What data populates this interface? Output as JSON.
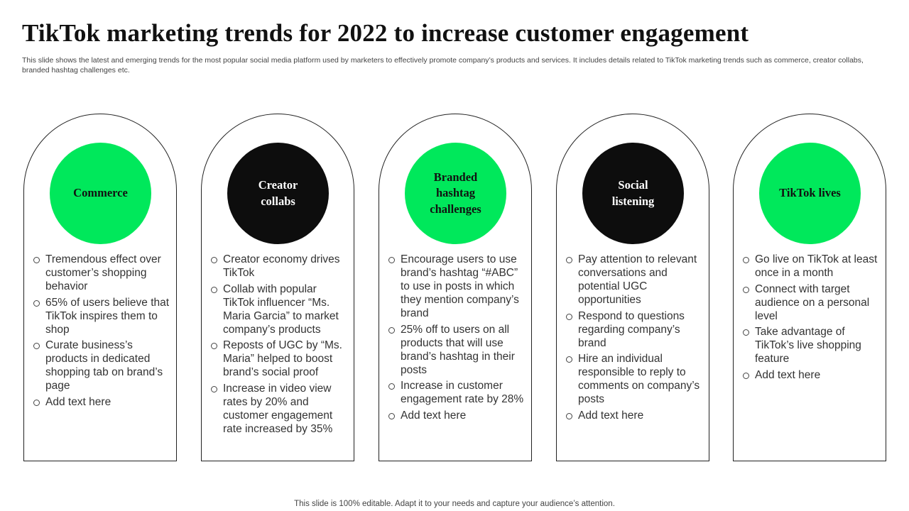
{
  "title": "TikTok marketing trends for 2022 to increase customer engagement",
  "subtitle": "This slide shows the latest and emerging trends for the most popular social media platform used by marketers to effectively promote company’s products and services. It includes details related to TikTok marketing trends such as commerce, creator collabs, branded hashtag challenges etc.",
  "cards": [
    {
      "heading": "Commerce",
      "circle_color": "#00e85b",
      "items": [
        "Tremendous effect over customer’s shopping behavior",
        "65% of users believe that TikTok inspires them to shop",
        "Curate business’s products in dedicated shopping tab on brand’s page",
        "Add text here"
      ]
    },
    {
      "heading": "Creator\ncollabs",
      "circle_color": "#0d0d0d",
      "items": [
        "Creator economy drives TikTok",
        "Collab with popular TikTok influencer  “Ms. Maria Garcia” to market company’s products",
        "Reposts of UGC by “Ms. Maria” helped to boost brand’s social proof",
        "Increase in video view rates by 20% and customer engagement rate increased by 35%"
      ]
    },
    {
      "heading": "Branded\nhashtag\nchallenges",
      "circle_color": "#00e85b",
      "items": [
        "Encourage users to use brand’s hashtag  “#ABC” to use in posts in which they mention company’s brand",
        "25% off to users on all products that will use brand’s hashtag in their posts",
        "Increase  in customer engagement rate by 28%",
        "Add text here"
      ]
    },
    {
      "heading": "Social\nlistening",
      "circle_color": "#0d0d0d",
      "items": [
        "Pay attention to relevant conversations and potential UGC opportunities",
        "Respond to questions regarding company’s brand",
        "Hire an individual responsible to reply to comments on company’s posts",
        "Add text here"
      ]
    },
    {
      "heading": "TikTok lives",
      "circle_color": "#00e85b",
      "items": [
        "Go live on TikTok at least once in a month",
        "Connect with target audience on a personal level",
        "Take advantage of TikTok’s live shopping feature",
        "Add text here"
      ]
    }
  ],
  "footer": "This slide is 100% editable. Adapt it to your needs and capture your audience’s attention."
}
